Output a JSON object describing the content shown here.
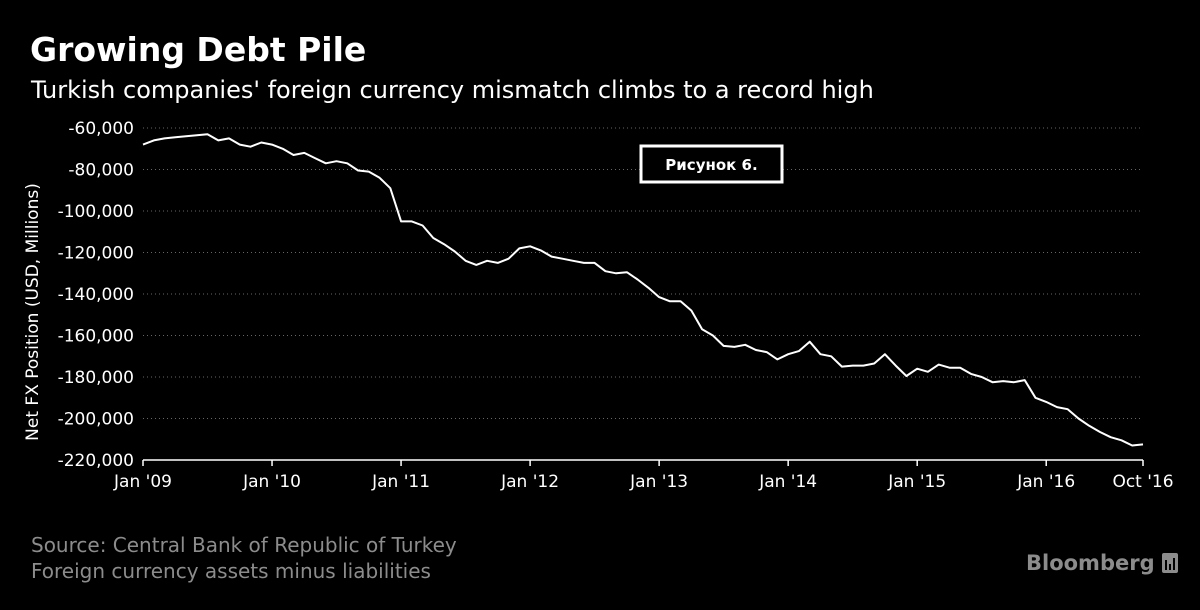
{
  "title": "Growing Debt Pile",
  "subtitle": "Turkish companies' foreign currency mismatch climbs to a record high",
  "source_lines": [
    "Source: Central Bank of Republic of Turkey",
    "Foreign currency assets minus liabilities"
  ],
  "brand": "Bloomberg",
  "annotation": "Рисунок 6.",
  "colors": {
    "background": "#000000",
    "line": "#ffffff",
    "grid": "#666666",
    "footer_text": "#8c8c8c"
  },
  "chart_data": {
    "type": "line",
    "title": "Growing Debt Pile",
    "subtitle": "Turkish companies' foreign currency mismatch climbs to a record high",
    "ylabel": "Net FX Position (USD, Millions)",
    "xlabel": "",
    "ylim": [
      -220000,
      -60000
    ],
    "yticks": [
      -60000,
      -80000,
      -100000,
      -120000,
      -140000,
      -160000,
      -180000,
      -200000,
      -220000
    ],
    "ytick_labels": [
      "-60,000",
      "-80,000",
      "-100,000",
      "-120,000",
      "-140,000",
      "-160,000",
      "-180,000",
      "-200,000",
      "-220,000"
    ],
    "xlim": [
      "2009-01",
      "2016-10"
    ],
    "xticks": [
      "2009-01",
      "2010-01",
      "2011-01",
      "2012-01",
      "2013-01",
      "2014-01",
      "2015-01",
      "2016-01",
      "2016-10"
    ],
    "xtick_labels": [
      "Jan '09",
      "Jan '10",
      "Jan '11",
      "Jan '12",
      "Jan '13",
      "Jan '14",
      "Jan '15",
      "Jan '16",
      "Oct '16"
    ],
    "grid": "horizontal-dotted",
    "legend": "none",
    "series": [
      {
        "x": [
          "2009-01",
          "2009-02",
          "2009-03",
          "2009-04",
          "2009-05",
          "2009-06",
          "2009-07",
          "2009-08",
          "2009-09",
          "2009-10",
          "2009-11",
          "2009-12",
          "2010-01",
          "2010-02",
          "2010-03",
          "2010-04",
          "2010-05",
          "2010-06",
          "2010-07",
          "2010-08",
          "2010-09",
          "2010-10",
          "2010-11",
          "2010-12",
          "2011-01",
          "2011-02",
          "2011-03",
          "2011-04",
          "2011-05",
          "2011-06",
          "2011-07",
          "2011-08",
          "2011-09",
          "2011-10",
          "2011-11",
          "2011-12",
          "2012-01",
          "2012-02",
          "2012-03",
          "2012-04",
          "2012-05",
          "2012-06",
          "2012-07",
          "2012-08",
          "2012-09",
          "2012-10",
          "2012-11",
          "2012-12",
          "2013-01",
          "2013-02",
          "2013-03",
          "2013-04",
          "2013-05",
          "2013-06",
          "2013-07",
          "2013-08",
          "2013-09",
          "2013-10",
          "2013-11",
          "2013-12",
          "2014-01",
          "2014-02",
          "2014-03",
          "2014-04",
          "2014-05",
          "2014-06",
          "2014-07",
          "2014-08",
          "2014-09",
          "2014-10",
          "2014-11",
          "2014-12",
          "2015-01",
          "2015-02",
          "2015-03",
          "2015-04",
          "2015-05",
          "2015-06",
          "2015-07",
          "2015-08",
          "2015-09",
          "2015-10",
          "2015-11",
          "2015-12",
          "2016-01",
          "2016-02",
          "2016-03",
          "2016-04",
          "2016-05",
          "2016-06",
          "2016-07",
          "2016-08",
          "2016-09",
          "2016-10"
        ],
        "values": [
          -68000,
          -66000,
          -65000,
          -64500,
          -64000,
          -63500,
          -63000,
          -66000,
          -65000,
          -68000,
          -69000,
          -67000,
          -68000,
          -70000,
          -73000,
          -72000,
          -74500,
          -77000,
          -76000,
          -77000,
          -80500,
          -81000,
          -84000,
          -89000,
          -105000,
          -105000,
          -107000,
          -113000,
          -116000,
          -119500,
          -124000,
          -126000,
          -124000,
          -125000,
          -123000,
          -118000,
          -117000,
          -119000,
          -122000,
          -123000,
          -124000,
          -125000,
          -125000,
          -129000,
          -130000,
          -129500,
          -133000,
          -137000,
          -141500,
          -143500,
          -143500,
          -148000,
          -157000,
          -160000,
          -165000,
          -165500,
          -164500,
          -167000,
          -168000,
          -171500,
          -169000,
          -167500,
          -163000,
          -169000,
          -170000,
          -175000,
          -174500,
          -174500,
          -173500,
          -169000,
          -174500,
          -179500,
          -176000,
          -177500,
          -174000,
          -175500,
          -175500,
          -178500,
          -180000,
          -182500,
          -182000,
          -182500,
          -181500,
          -190000,
          -192000,
          -194500,
          -195500,
          -200000,
          -203500,
          -206500,
          -209000,
          -210500,
          -213000,
          -212500
        ]
      }
    ]
  }
}
